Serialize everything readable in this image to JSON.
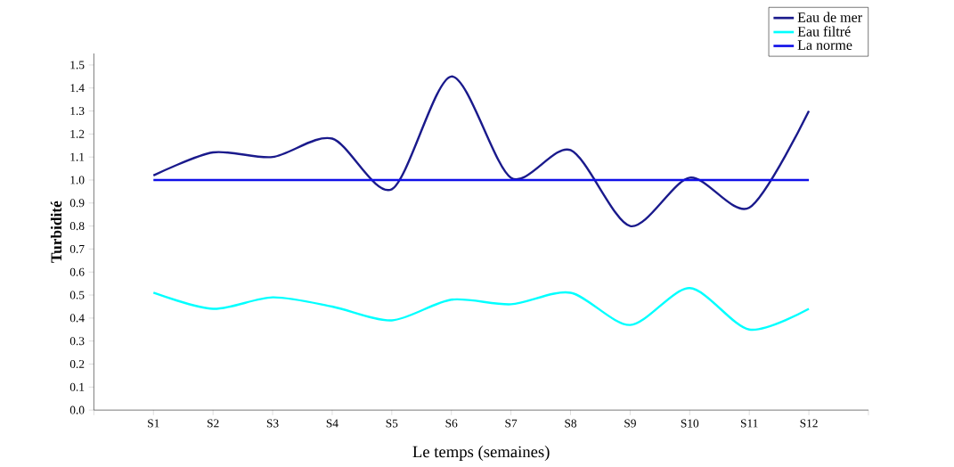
{
  "chart_data": {
    "type": "line",
    "xlabel": "Le temps (semaines)",
    "ylabel": "Turbidité",
    "categories": [
      "S1",
      "S2",
      "S3",
      "S4",
      "S5",
      "S6",
      "S7",
      "S8",
      "S9",
      "S10",
      "S11",
      "S12"
    ],
    "series": [
      {
        "name": "Eau de mer",
        "color": "#1a1a8c",
        "values": [
          1.02,
          1.12,
          1.1,
          1.18,
          0.96,
          1.45,
          1.01,
          1.13,
          0.8,
          1.01,
          0.88,
          1.3
        ]
      },
      {
        "name": "Eau filtré",
        "color": "#00ffff",
        "values": [
          0.51,
          0.44,
          0.49,
          0.45,
          0.39,
          0.48,
          0.46,
          0.51,
          0.37,
          0.53,
          0.35,
          0.44
        ]
      },
      {
        "name": "La norme",
        "color": "#1010e8",
        "values": [
          1.0,
          1.0,
          1.0,
          1.0,
          1.0,
          1.0,
          1.0,
          1.0,
          1.0,
          1.0,
          1.0,
          1.0
        ]
      }
    ],
    "ylim": [
      0,
      1.55
    ],
    "yticks": [
      {
        "value": 0,
        "label": "0.0"
      },
      {
        "value": 0.1,
        "label": "0.1"
      },
      {
        "value": 0.2,
        "label": "0.2"
      },
      {
        "value": 0.3,
        "label": "0.3"
      },
      {
        "value": 0.4,
        "label": "0.4"
      },
      {
        "value": 0.5,
        "label": "0.5"
      },
      {
        "value": 0.6,
        "label": "0.6"
      },
      {
        "value": 0.7,
        "label": "0.7"
      },
      {
        "value": 0.8,
        "label": "0.8"
      },
      {
        "value": 0.9,
        "label": "0.9"
      },
      {
        "value": 1.0,
        "label": "1.0"
      },
      {
        "value": 1.1,
        "label": "1.1"
      },
      {
        "value": 1.2,
        "label": "1.2"
      },
      {
        "value": 1.3,
        "label": "1.3"
      },
      {
        "value": 1.4,
        "label": "1.4"
      },
      {
        "value": 1.5,
        "label": "1.5"
      }
    ],
    "legend": "top right"
  }
}
